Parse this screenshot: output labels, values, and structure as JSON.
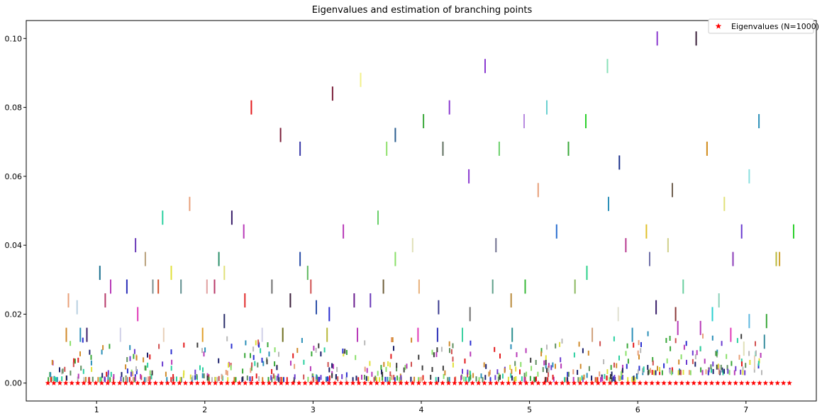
{
  "chart_data": {
    "type": "scatter",
    "title": "Eigenvalues and estimation of branching points",
    "xlabel": "",
    "ylabel": "",
    "xlim": [
      0.35,
      7.65
    ],
    "ylim": [
      -0.0052,
      0.1052
    ],
    "xticks": [
      1,
      2,
      3,
      4,
      5,
      6,
      7
    ],
    "yticks": [
      0.0,
      0.02,
      0.04,
      0.06,
      0.08,
      0.1
    ],
    "xtick_labels": [
      "1",
      "2",
      "3",
      "4",
      "5",
      "6",
      "7"
    ],
    "ytick_labels": [
      "0.00",
      "0.02",
      "0.04",
      "0.06",
      "0.08",
      "0.10"
    ],
    "grid": false,
    "legend": {
      "position": "top-right",
      "entries": [
        "Eigenvalues (N=1000)"
      ]
    },
    "eigenvalue_series": {
      "name": "Eigenvalues (N=1000)",
      "color": "#ff0000",
      "marker": "star",
      "x_start": 0.55,
      "x_end": 7.45,
      "count": 1000,
      "y": 0.0
    },
    "branch_markers": [
      [
        2.43,
        0.08,
        "#e31a1c"
      ],
      [
        3.18,
        0.084,
        "#7b1f3a"
      ],
      [
        3.44,
        0.088,
        "#f2f08a"
      ],
      [
        2.7,
        0.072,
        "#7b1f3a"
      ],
      [
        2.88,
        0.068,
        "#3a3aa8"
      ],
      [
        3.76,
        0.072,
        "#2b5f8f"
      ],
      [
        3.68,
        0.068,
        "#8ee06a"
      ],
      [
        4.02,
        0.076,
        "#3aa83a"
      ],
      [
        4.26,
        0.08,
        "#8a3ad0"
      ],
      [
        4.59,
        0.092,
        "#8a3ad0"
      ],
      [
        4.2,
        0.068,
        "#5f6f5f"
      ],
      [
        4.72,
        0.068,
        "#6ad06a"
      ],
      [
        4.44,
        0.06,
        "#8a3ad0"
      ],
      [
        4.95,
        0.076,
        "#b88ae0"
      ],
      [
        5.16,
        0.08,
        "#6ad0d0"
      ],
      [
        5.36,
        0.068,
        "#3aa83a"
      ],
      [
        5.52,
        0.076,
        "#2bd02b"
      ],
      [
        5.72,
        0.092,
        "#8ae0b8"
      ],
      [
        5.83,
        0.064,
        "#1a2f8a"
      ],
      [
        6.18,
        0.1,
        "#8a3ad0"
      ],
      [
        6.54,
        0.1,
        "#3a1f3a"
      ],
      [
        6.64,
        0.068,
        "#d08a1a"
      ],
      [
        7.12,
        0.076,
        "#2b8fb8"
      ],
      [
        6.32,
        0.056,
        "#6f5f4f"
      ],
      [
        7.03,
        0.06,
        "#8ae0e0"
      ],
      [
        5.08,
        0.056,
        "#e8a07a"
      ],
      [
        5.73,
        0.052,
        "#2b8fb8"
      ],
      [
        6.8,
        0.052,
        "#e0e07a"
      ],
      [
        1.86,
        0.052,
        "#e8a07a"
      ],
      [
        1.61,
        0.048,
        "#2bd0a0"
      ],
      [
        2.25,
        0.048,
        "#3a1f6a"
      ],
      [
        2.36,
        0.044,
        "#b83ab8"
      ],
      [
        3.6,
        0.048,
        "#6ad06a"
      ],
      [
        3.28,
        0.044,
        "#b83ab8"
      ],
      [
        5.25,
        0.044,
        "#2b6fd0"
      ],
      [
        6.08,
        0.044,
        "#e0c02b"
      ],
      [
        6.96,
        0.044,
        "#6a3ad0"
      ],
      [
        7.44,
        0.044,
        "#2bd02b"
      ],
      [
        1.36,
        0.04,
        "#6a3ab8"
      ],
      [
        1.45,
        0.036,
        "#b8a07a"
      ],
      [
        2.13,
        0.036,
        "#2b8f6a"
      ],
      [
        2.18,
        0.032,
        "#e0e07a"
      ],
      [
        2.88,
        0.036,
        "#2b4fa8"
      ],
      [
        2.95,
        0.032,
        "#5fb85f"
      ],
      [
        3.76,
        0.036,
        "#8ae06a"
      ],
      [
        3.92,
        0.04,
        "#e0e0b8"
      ],
      [
        4.69,
        0.04,
        "#6f6f8f"
      ],
      [
        5.89,
        0.04,
        "#b83a8f"
      ],
      [
        6.11,
        0.036,
        "#6f6fa8"
      ],
      [
        6.28,
        0.04,
        "#d0d08a"
      ],
      [
        6.88,
        0.036,
        "#8a3ab8"
      ],
      [
        7.28,
        0.036,
        "#b8b83a"
      ],
      [
        7.31,
        0.036,
        "#d0a02b"
      ],
      [
        1.03,
        0.032,
        "#1a6f8f"
      ],
      [
        1.69,
        0.032,
        "#e0e03a"
      ],
      [
        5.53,
        0.032,
        "#2bd08a"
      ],
      [
        5.42,
        0.028,
        "#8ab85f"
      ],
      [
        6.42,
        0.028,
        "#6ad0a0"
      ],
      [
        1.13,
        0.028,
        "#b83ab8"
      ],
      [
        1.28,
        0.028,
        "#2b2fb8"
      ],
      [
        1.52,
        0.028,
        "#7a8f8f"
      ],
      [
        1.57,
        0.028,
        "#d04f2b"
      ],
      [
        1.78,
        0.028,
        "#5f8f8f"
      ],
      [
        2.02,
        0.028,
        "#e0a0a0"
      ],
      [
        2.09,
        0.028,
        "#b83a6a"
      ],
      [
        2.62,
        0.028,
        "#6f6f6f"
      ],
      [
        2.98,
        0.028,
        "#d04f4f"
      ],
      [
        3.65,
        0.028,
        "#6f5f3a"
      ],
      [
        3.98,
        0.028,
        "#e8b07a"
      ],
      [
        4.66,
        0.028,
        "#5fa08a"
      ],
      [
        4.96,
        0.028,
        "#3ab83a"
      ],
      [
        0.74,
        0.024,
        "#e8a07a"
      ],
      [
        1.08,
        0.024,
        "#b83a6a"
      ],
      [
        2.37,
        0.024,
        "#e02b2b"
      ],
      [
        2.79,
        0.024,
        "#3a1f3a"
      ],
      [
        3.38,
        0.024,
        "#6a1f8f"
      ],
      [
        3.53,
        0.024,
        "#6a3ab8"
      ],
      [
        4.83,
        0.024,
        "#b88a3a"
      ],
      [
        6.75,
        0.024,
        "#8ad0b8"
      ],
      [
        0.82,
        0.022,
        "#b8d0e0"
      ],
      [
        1.38,
        0.02,
        "#e03ab8"
      ],
      [
        2.18,
        0.018,
        "#2b2f6a"
      ],
      [
        3.03,
        0.022,
        "#2b4fa8"
      ],
      [
        3.15,
        0.02,
        "#2b2fd0"
      ],
      [
        4.16,
        0.022,
        "#3a3a8f"
      ],
      [
        4.45,
        0.02,
        "#6f6f6f"
      ],
      [
        5.82,
        0.02,
        "#e0e0d0"
      ],
      [
        6.35,
        0.02,
        "#8a3a3a"
      ],
      [
        6.69,
        0.02,
        "#2bd0d0"
      ],
      [
        6.17,
        0.022,
        "#3a1f6a"
      ],
      [
        7.19,
        0.018,
        "#3aa83a"
      ],
      [
        7.03,
        0.018,
        "#5fb8e0"
      ],
      [
        0.72,
        0.014,
        "#d08a2b"
      ],
      [
        0.85,
        0.014,
        "#2b8fb8"
      ],
      [
        0.91,
        0.014,
        "#3a1f6a"
      ],
      [
        1.22,
        0.014,
        "#d0d0e8"
      ],
      [
        1.62,
        0.014,
        "#e8d0b8"
      ],
      [
        1.98,
        0.014,
        "#e0a02b"
      ],
      [
        2.53,
        0.014,
        "#d0d0e8"
      ],
      [
        2.72,
        0.014,
        "#6f6f1f"
      ],
      [
        3.13,
        0.014,
        "#b8b83a"
      ],
      [
        3.41,
        0.014,
        "#b83ab8"
      ],
      [
        3.97,
        0.014,
        "#e03ab8"
      ],
      [
        4.15,
        0.014,
        "#2b2fb8"
      ],
      [
        4.38,
        0.014,
        "#3ad0a0"
      ],
      [
        4.84,
        0.014,
        "#2b8f8f"
      ],
      [
        5.58,
        0.014,
        "#d0a07a"
      ],
      [
        5.95,
        0.014,
        "#2b8fb8"
      ],
      [
        6.37,
        0.016,
        "#b83ab8"
      ],
      [
        6.58,
        0.016,
        "#b83ab8"
      ],
      [
        6.86,
        0.014,
        "#e03ab8"
      ],
      [
        7.17,
        0.012,
        "#3a8fa0"
      ],
      [
        7.08,
        0.006,
        "#e8d0b8"
      ],
      [
        6.98,
        0.01,
        "#e0e0b8"
      ]
    ]
  }
}
